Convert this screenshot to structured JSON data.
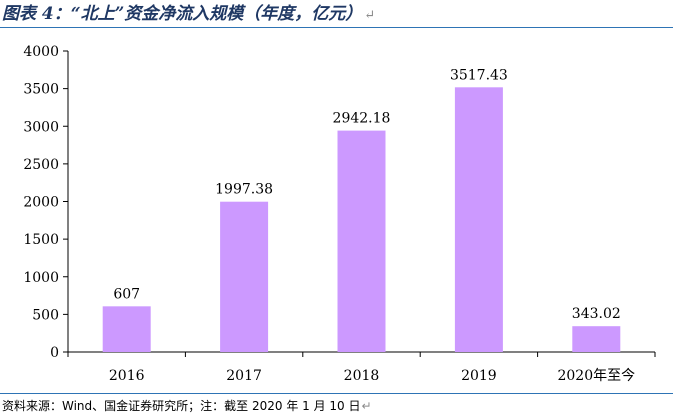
{
  "title": "图表 4：“北上”资金净流入规模（年度，亿元）",
  "return_mark": "↵",
  "source": "资料来源：Wind、国金证券研究所；注：截至 2020 年 1 月 10 日",
  "chart_data": {
    "type": "bar",
    "categories": [
      "2016",
      "2017",
      "2018",
      "2019",
      "2020年至今"
    ],
    "values": [
      607,
      1997.38,
      2942.18,
      3517.43,
      343.02
    ],
    "value_labels": [
      "607",
      "1997.38",
      "2942.18",
      "3517.43",
      "343.02"
    ],
    "ylim": [
      0,
      4000
    ],
    "yticks": [
      0,
      500,
      1000,
      1500,
      2000,
      2500,
      3000,
      3500,
      4000
    ],
    "bar_color": "#cc99ff",
    "grid": false,
    "legend": "none"
  }
}
